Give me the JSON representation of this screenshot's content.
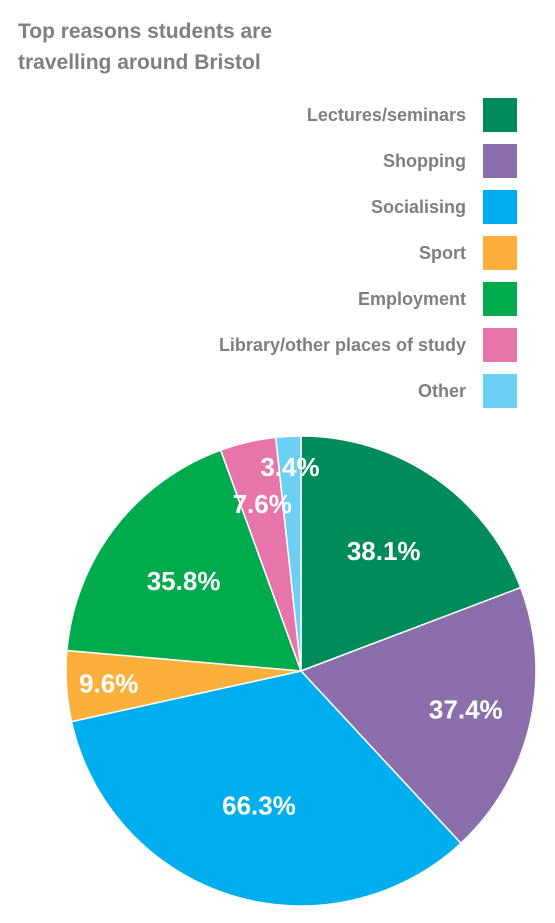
{
  "chart_data": {
    "type": "pie",
    "title_lines": [
      "Top reasons students are",
      "travelling around Bristol"
    ],
    "legend_position": "top-right",
    "slices": [
      {
        "label": "Lectures/seminars",
        "value": 38.1,
        "display": "38.1%",
        "color": "#008c5a"
      },
      {
        "label": "Shopping",
        "value": 37.4,
        "display": "37.4%",
        "color": "#8b6fad"
      },
      {
        "label": "Socialising",
        "value": 66.3,
        "display": "66.3%",
        "color": "#00adee"
      },
      {
        "label": "Sport",
        "value": 9.6,
        "display": "9.6%",
        "color": "#fbb03b"
      },
      {
        "label": "Employment",
        "value": 35.8,
        "display": "35.8%",
        "color": "#00ab4e"
      },
      {
        "label": "Library/other places of study",
        "value": 7.6,
        "display": "7.6%",
        "color": "#e874ac"
      },
      {
        "label": "Other",
        "value": 3.4,
        "display": "3.4%",
        "color": "#6dcff6"
      }
    ]
  }
}
